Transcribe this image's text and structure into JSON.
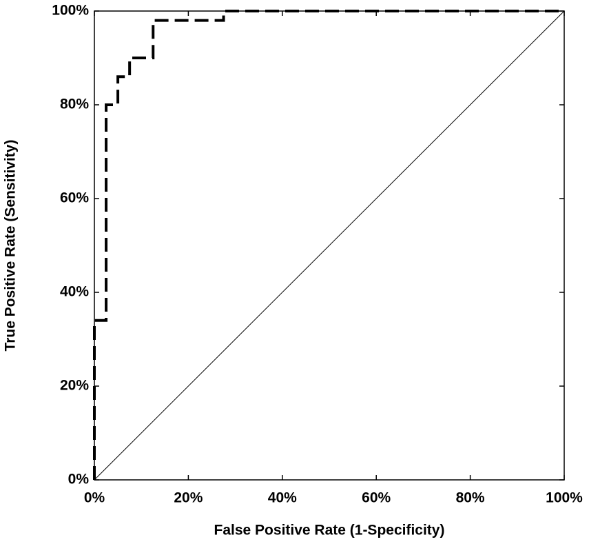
{
  "chart_data": {
    "type": "line",
    "xlabel": "False Positive Rate (1-Specificity)",
    "ylabel": "True Positive Rate (Sensitivity)",
    "xlim": [
      0,
      100
    ],
    "ylim": [
      0,
      100
    ],
    "xticks": [
      {
        "value": 0,
        "label": "0%"
      },
      {
        "value": 20,
        "label": "20%"
      },
      {
        "value": 40,
        "label": "40%"
      },
      {
        "value": 60,
        "label": "60%"
      },
      {
        "value": 80,
        "label": "80%"
      },
      {
        "value": 100,
        "label": "100%"
      }
    ],
    "yticks": [
      {
        "value": 0,
        "label": "0%"
      },
      {
        "value": 20,
        "label": "20%"
      },
      {
        "value": 40,
        "label": "40%"
      },
      {
        "value": 60,
        "label": "60%"
      },
      {
        "value": 80,
        "label": "80%"
      },
      {
        "value": 100,
        "label": "100%"
      }
    ],
    "grid": false,
    "series": [
      {
        "color": "#000000",
        "dashed": true,
        "width": 4,
        "x": [
          0,
          0,
          2.5,
          2.5,
          5,
          5,
          7.5,
          7.5,
          12.5,
          12.5,
          27.5,
          27.5,
          100
        ],
        "values": [
          0,
          34,
          34,
          80,
          80,
          86,
          86,
          90,
          90,
          98,
          98,
          100,
          100
        ]
      },
      {
        "color": "#000000",
        "dashed": false,
        "width": 1,
        "x": [
          0,
          100
        ],
        "values": [
          0,
          100
        ]
      }
    ]
  }
}
